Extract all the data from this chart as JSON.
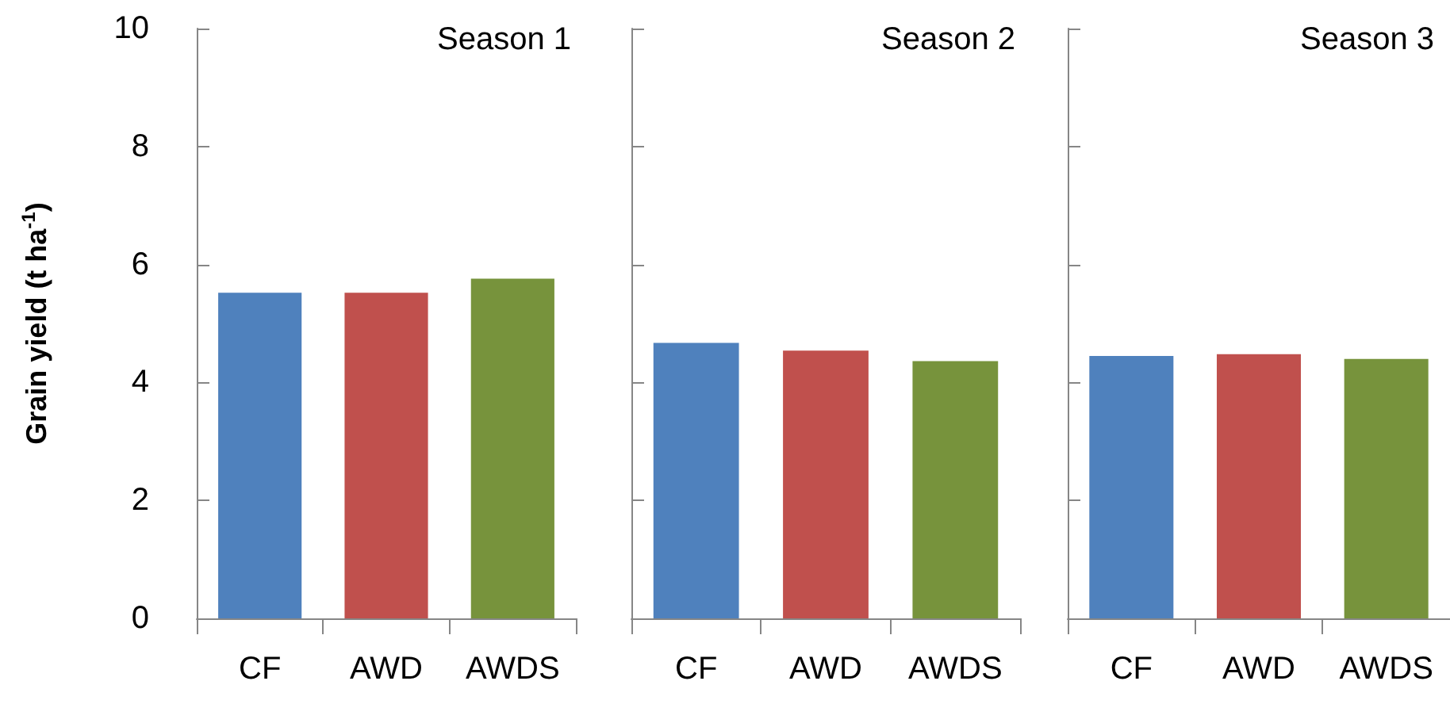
{
  "chart_data": [
    {
      "type": "bar",
      "title": "Season 1",
      "ylabel": "Grain yield (t ha$^{-1}$)",
      "categories": [
        "CF",
        "AWD",
        "AWDS"
      ],
      "values": [
        5.52,
        5.52,
        5.76
      ],
      "colors": [
        "#4f81bd",
        "#c0504d",
        "#77933c"
      ],
      "ylim": [
        0,
        10
      ],
      "yticks": [
        0,
        2,
        4,
        6,
        8,
        10
      ],
      "grid": false
    },
    {
      "type": "bar",
      "title": "Season 2",
      "categories": [
        "CF",
        "AWD",
        "AWDS"
      ],
      "values": [
        4.67,
        4.54,
        4.36
      ],
      "colors": [
        "#4f81bd",
        "#c0504d",
        "#77933c"
      ],
      "ylim": [
        0,
        10
      ],
      "yticks": [
        0,
        2,
        4,
        6,
        8,
        10
      ],
      "grid": false,
      "tick_labels": "x"
    },
    {
      "type": "bar",
      "title": "Season 3",
      "categories": [
        "CF",
        "AWD",
        "AWDS"
      ],
      "values": [
        4.45,
        4.48,
        4.4
      ],
      "colors": [
        "#4f81bd",
        "#c0504d",
        "#77933c"
      ],
      "ylim": [
        0,
        10
      ],
      "yticks": [
        0,
        2,
        4,
        6,
        8,
        10
      ],
      "grid": false,
      "tick_labels": "x"
    }
  ]
}
